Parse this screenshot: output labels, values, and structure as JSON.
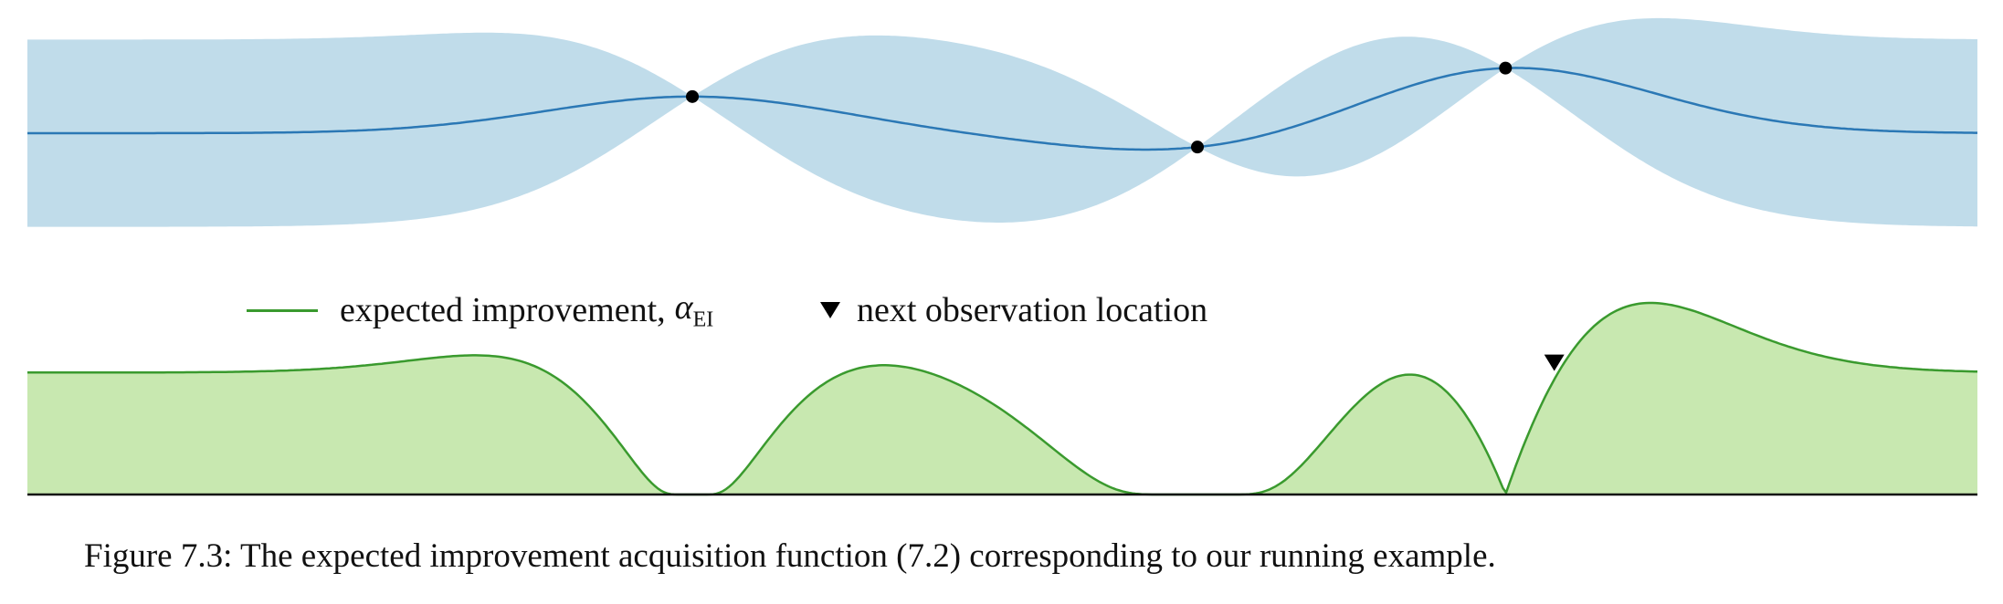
{
  "chart_data": [
    {
      "type": "area",
      "xlim": [
        0,
        1
      ],
      "ylim": [
        -1.3,
        1.3
      ],
      "observations": [
        {
          "x": 0.341,
          "y": 0.45
        },
        {
          "x": 0.6,
          "y": -0.17
        },
        {
          "x": 0.758,
          "y": 0.8
        }
      ],
      "colors": {
        "band": "#c0dcea",
        "mean": "#2b78b5",
        "points": "#000000"
      }
    },
    {
      "type": "area",
      "xlim": [
        0,
        1
      ],
      "ylim": [
        0,
        1
      ],
      "series": [
        {
          "name": "expected improvement, α_EI"
        }
      ],
      "next_observation": {
        "x": 0.783
      },
      "colors": {
        "line": "#3a9a2e",
        "fill": "#c8e8b0",
        "marker": "#000000"
      }
    }
  ],
  "legend": {
    "ei_label": "expected improvement,",
    "ei_symbol": "α",
    "ei_subscript": "EI",
    "next_label": "next observation location"
  },
  "caption": "Figure 7.3: The expected improvement acquisition function (7.2) corresponding to our running example."
}
